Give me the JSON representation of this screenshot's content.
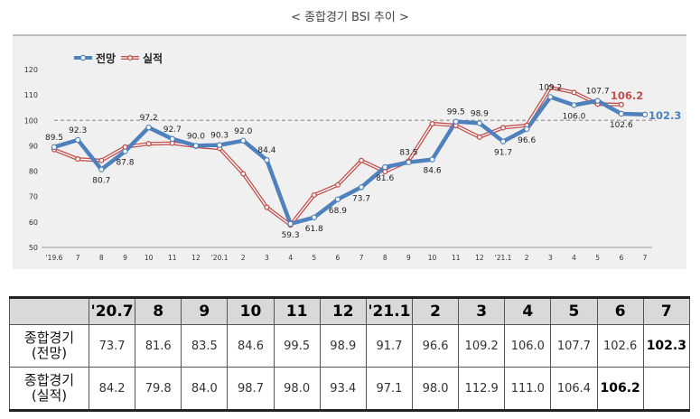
{
  "title": "< 종합경기 BSI 추이 >",
  "chart_data": {
    "type": "line",
    "x": [
      "'19.6",
      "7",
      "8",
      "9",
      "10",
      "11",
      "12",
      "'20.1",
      "2",
      "3",
      "4",
      "5",
      "6",
      "7",
      "8",
      "9",
      "10",
      "11",
      "12",
      "'21.1",
      "2",
      "3",
      "4",
      "5",
      "6",
      "7"
    ],
    "ylim": [
      50,
      120
    ],
    "yticks": [
      50,
      60,
      70,
      80,
      90,
      100,
      110,
      120
    ],
    "reference_line": 100,
    "legend_position": "top-left",
    "series": [
      {
        "name": "전망",
        "color": "#4f81bd",
        "values": [
          89.5,
          92.3,
          80.7,
          87.8,
          97.2,
          92.7,
          90.0,
          90.3,
          92.0,
          84.4,
          59.3,
          61.8,
          68.9,
          73.7,
          81.6,
          83.5,
          84.6,
          99.5,
          98.9,
          91.7,
          96.6,
          109.2,
          106.0,
          107.7,
          102.6,
          102.3
        ]
      },
      {
        "name": "실적",
        "color": "#c0504d",
        "values": [
          88.5,
          84.8,
          84.2,
          89.5,
          90.8,
          91.0,
          89.8,
          89.0,
          79.0,
          65.8,
          58.8,
          70.6,
          74.6,
          84.2,
          79.8,
          84.0,
          98.7,
          98.0,
          93.4,
          97.1,
          98.0,
          112.9,
          111.0,
          106.4,
          106.2,
          null
        ]
      }
    ],
    "data_labels": [
      {
        "i": 0,
        "text": "89.5",
        "pos": "above"
      },
      {
        "i": 1,
        "text": "92.3",
        "pos": "above"
      },
      {
        "i": 2,
        "text": "80.7",
        "pos": "below"
      },
      {
        "i": 3,
        "text": "87.8",
        "pos": "below"
      },
      {
        "i": 4,
        "text": "97.2",
        "pos": "above"
      },
      {
        "i": 5,
        "text": "92.7",
        "pos": "above"
      },
      {
        "i": 6,
        "text": "90.0",
        "pos": "above"
      },
      {
        "i": 7,
        "text": "90.3",
        "pos": "above"
      },
      {
        "i": 8,
        "text": "92.0",
        "pos": "above"
      },
      {
        "i": 9,
        "text": "84.4",
        "pos": "above"
      },
      {
        "i": 10,
        "text": "59.3",
        "pos": "below"
      },
      {
        "i": 11,
        "text": "61.8",
        "pos": "below"
      },
      {
        "i": 12,
        "text": "68.9",
        "pos": "below"
      },
      {
        "i": 13,
        "text": "73.7",
        "pos": "below"
      },
      {
        "i": 14,
        "text": "81.6",
        "pos": "below"
      },
      {
        "i": 15,
        "text": "83.5",
        "pos": "above"
      },
      {
        "i": 16,
        "text": "84.6",
        "pos": "below"
      },
      {
        "i": 17,
        "text": "99.5",
        "pos": "above"
      },
      {
        "i": 18,
        "text": "98.9",
        "pos": "above"
      },
      {
        "i": 19,
        "text": "91.7",
        "pos": "below"
      },
      {
        "i": 20,
        "text": "96.6",
        "pos": "below"
      },
      {
        "i": 21,
        "text": "109.2",
        "pos": "above"
      },
      {
        "i": 22,
        "text": "106.0",
        "pos": "below"
      },
      {
        "i": 23,
        "text": "107.7",
        "pos": "above"
      },
      {
        "i": 24,
        "text": "102.6",
        "pos": "below"
      }
    ],
    "end_labels": [
      {
        "series": 0,
        "i": 25,
        "text": "102.3"
      },
      {
        "series": 1,
        "i": 24,
        "text": "106.2"
      }
    ]
  },
  "table": {
    "headers": [
      "'20.7",
      "8",
      "9",
      "10",
      "11",
      "12",
      "'21.1",
      "2",
      "3",
      "4",
      "5",
      "6",
      "7"
    ],
    "rows": [
      {
        "label1": "종합경기",
        "label2": "(전망)",
        "values": [
          "73.7",
          "81.6",
          "83.5",
          "84.6",
          "99.5",
          "98.9",
          "91.7",
          "96.6",
          "109.2",
          "106.0",
          "107.7",
          "102.6",
          "102.3"
        ],
        "bold_index": 12
      },
      {
        "label1": "종합경기",
        "label2": "(실적)",
        "values": [
          "84.2",
          "79.8",
          "84.0",
          "98.7",
          "98.0",
          "93.4",
          "97.1",
          "98.0",
          "112.9",
          "111.0",
          "106.4",
          "106.2",
          ""
        ],
        "bold_index": 11
      }
    ]
  }
}
